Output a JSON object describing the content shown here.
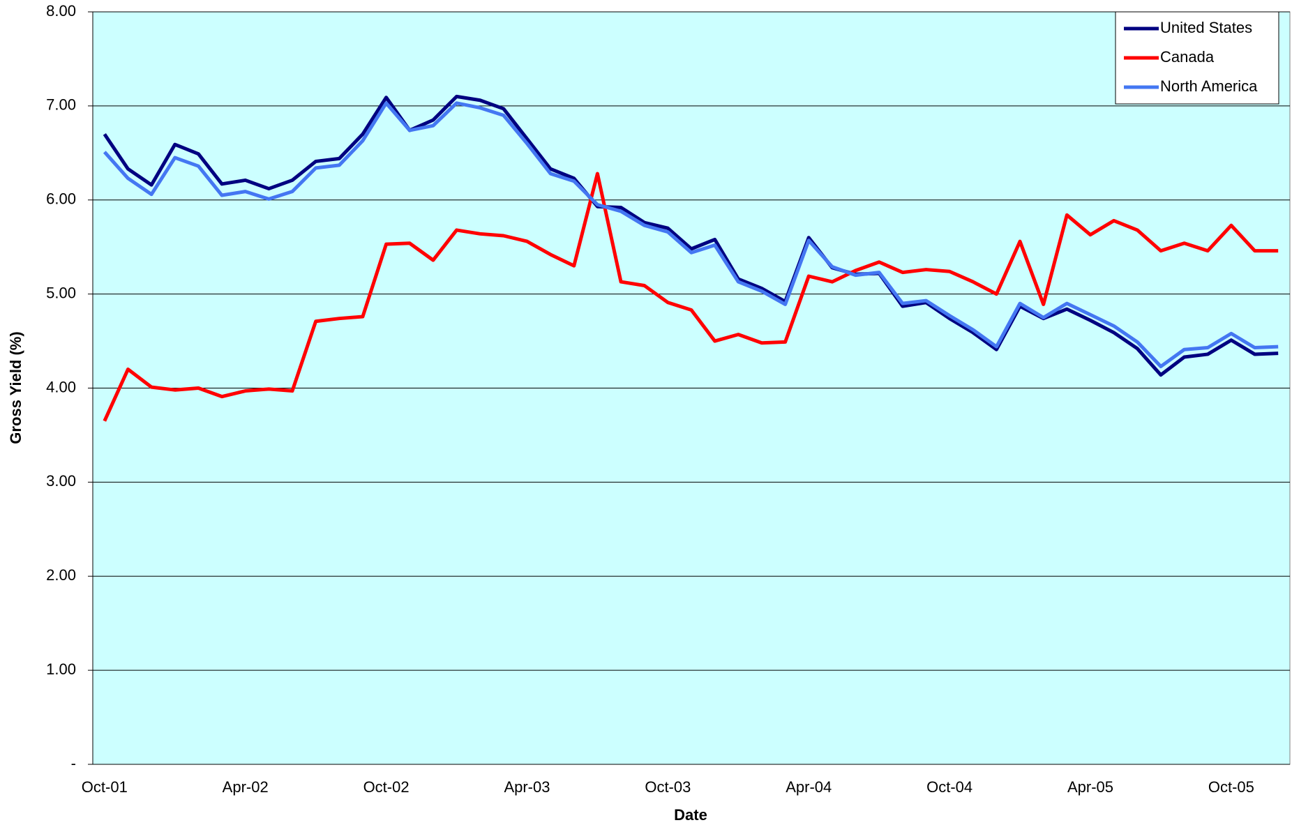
{
  "chart_data": {
    "type": "line",
    "xlabel": "Date",
    "ylabel": "Gross Yield (%)",
    "categories": [
      "Oct-01",
      null,
      null,
      null,
      null,
      null,
      "Apr-02",
      null,
      null,
      null,
      null,
      null,
      "Oct-02",
      null,
      null,
      null,
      null,
      null,
      "Apr-03",
      null,
      null,
      null,
      null,
      null,
      "Oct-03",
      null,
      null,
      null,
      null,
      null,
      "Apr-04",
      null,
      null,
      null,
      null,
      null,
      "Oct-04",
      null,
      null,
      null,
      null,
      null,
      "Apr-05",
      null,
      null,
      null,
      null,
      null,
      "Oct-05",
      null,
      null
    ],
    "series": [
      {
        "name": "United States",
        "color": "#000080",
        "values": [
          6.7,
          6.33,
          6.16,
          6.59,
          6.49,
          6.17,
          6.21,
          6.12,
          6.21,
          6.41,
          6.44,
          6.7,
          7.09,
          6.74,
          6.85,
          7.1,
          7.06,
          6.97,
          6.65,
          6.33,
          6.23,
          5.93,
          5.92,
          5.76,
          5.7,
          5.48,
          5.58,
          5.16,
          5.06,
          4.92,
          5.6,
          5.28,
          5.21,
          5.22,
          4.87,
          4.91,
          4.74,
          4.59,
          4.41,
          4.87,
          4.74,
          4.84,
          4.72,
          4.59,
          4.42,
          4.14,
          4.33,
          4.36,
          4.51,
          4.36,
          4.37
        ]
      },
      {
        "name": "Canada",
        "color": "#ff0000",
        "values": [
          3.65,
          4.2,
          4.01,
          3.98,
          4.0,
          3.91,
          3.97,
          3.99,
          3.97,
          4.71,
          4.74,
          4.76,
          5.53,
          5.54,
          5.36,
          5.68,
          5.64,
          5.62,
          5.56,
          5.42,
          5.3,
          6.28,
          5.13,
          5.09,
          4.91,
          4.83,
          4.5,
          4.57,
          4.48,
          4.49,
          5.19,
          5.13,
          5.25,
          5.34,
          5.23,
          5.26,
          5.24,
          5.13,
          5.0,
          5.56,
          4.89,
          5.84,
          5.63,
          5.78,
          5.68,
          5.46,
          5.54,
          5.46,
          5.73,
          5.46,
          5.46
        ]
      },
      {
        "name": "North America",
        "color": "#4477f2",
        "values": [
          6.51,
          6.23,
          6.06,
          6.45,
          6.36,
          6.05,
          6.09,
          6.01,
          6.09,
          6.34,
          6.37,
          6.63,
          7.03,
          6.74,
          6.79,
          7.03,
          6.98,
          6.9,
          6.6,
          6.28,
          6.2,
          5.95,
          5.88,
          5.73,
          5.66,
          5.44,
          5.52,
          5.13,
          5.03,
          4.89,
          5.57,
          5.29,
          5.2,
          5.23,
          4.9,
          4.93,
          4.77,
          4.62,
          4.44,
          4.9,
          4.75,
          4.9,
          4.78,
          4.66,
          4.49,
          4.23,
          4.41,
          4.43,
          4.58,
          4.43,
          4.44
        ]
      }
    ],
    "ylim": [
      0,
      8
    ],
    "yticks": [
      {
        "value": 0,
        "label": "-"
      },
      {
        "value": 1,
        "label": "1.00"
      },
      {
        "value": 2,
        "label": "2.00"
      },
      {
        "value": 3,
        "label": "3.00"
      },
      {
        "value": 4,
        "label": "4.00"
      },
      {
        "value": 5,
        "label": "5.00"
      },
      {
        "value": 6,
        "label": "6.00"
      },
      {
        "value": 7,
        "label": "7.00"
      },
      {
        "value": 8,
        "label": "8.00"
      }
    ],
    "grid": true,
    "plot_background": "#ccffff",
    "legend": "upper right"
  }
}
